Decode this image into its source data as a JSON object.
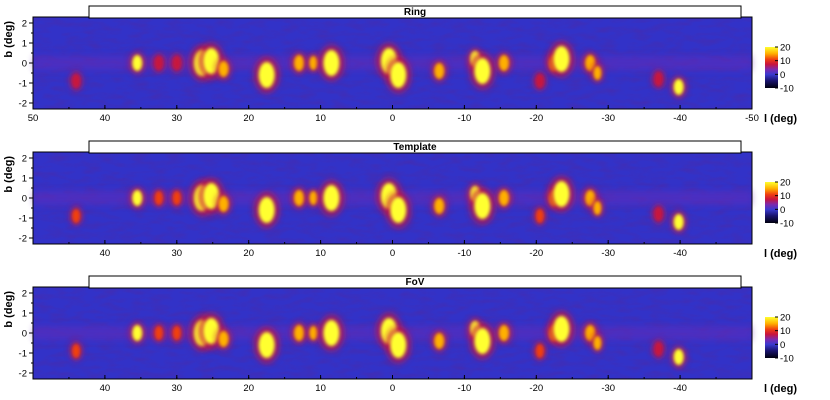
{
  "chart_data": [
    {
      "type": "heatmap",
      "title": "Ring",
      "xlabel": "l (deg)",
      "ylabel": "b (deg)",
      "xlim": [
        50,
        -50
      ],
      "ylim": [
        -2.3,
        2.3
      ],
      "x_tick_labels": [
        "50",
        "40",
        "30",
        "20",
        "10",
        "0",
        "-10",
        "-20",
        "-30",
        "-40",
        "-50"
      ],
      "y_tick_labels": [
        "-2",
        "-1",
        "0",
        "1",
        "2"
      ],
      "colorbar": {
        "range": [
          -10,
          20
        ],
        "tick_labels": [
          "-10",
          "0",
          "10",
          "20"
        ]
      },
      "hotspots": [
        {
          "l": 44,
          "b": -0.9,
          "value": 9
        },
        {
          "l": 35.5,
          "b": 0.0,
          "value": 18
        },
        {
          "l": 32.5,
          "b": 0.0,
          "value": 9
        },
        {
          "l": 30,
          "b": 0.0,
          "value": 9
        },
        {
          "l": 26.5,
          "b": 0.0,
          "value": 20
        },
        {
          "l": 25.2,
          "b": 0.1,
          "value": 20
        },
        {
          "l": 23.5,
          "b": -0.3,
          "value": 17
        },
        {
          "l": 17.5,
          "b": -0.6,
          "value": 20
        },
        {
          "l": 13,
          "b": 0.0,
          "value": 17
        },
        {
          "l": 11,
          "b": 0.0,
          "value": 14
        },
        {
          "l": 8.5,
          "b": 0.0,
          "value": 20
        },
        {
          "l": 0.5,
          "b": 0.1,
          "value": 20
        },
        {
          "l": -0.8,
          "b": -0.6,
          "value": 20
        },
        {
          "l": -6.5,
          "b": -0.4,
          "value": 16
        },
        {
          "l": -11.5,
          "b": 0.2,
          "value": 18
        },
        {
          "l": -12.5,
          "b": -0.4,
          "value": 20
        },
        {
          "l": -15.5,
          "b": 0.0,
          "value": 16
        },
        {
          "l": -20.5,
          "b": -0.9,
          "value": 9
        },
        {
          "l": -22.5,
          "b": 0.0,
          "value": 15
        },
        {
          "l": -23.5,
          "b": 0.2,
          "value": 20
        },
        {
          "l": -27.5,
          "b": 0.0,
          "value": 16
        },
        {
          "l": -28.5,
          "b": -0.5,
          "value": 14
        },
        {
          "l": -37,
          "b": -0.8,
          "value": 9
        },
        {
          "l": -39.8,
          "b": -1.2,
          "value": 18
        }
      ]
    },
    {
      "type": "heatmap",
      "title": "Template",
      "xlabel": "l (deg)",
      "ylabel": "b (deg)",
      "xlim": [
        50,
        -50
      ],
      "ylim": [
        -2.3,
        2.3
      ],
      "x_tick_labels": [
        "40",
        "30",
        "20",
        "10",
        "0",
        "-10",
        "-20",
        "-30",
        "-40"
      ],
      "y_tick_labels": [
        "-2",
        "-1",
        "0",
        "1",
        "2"
      ],
      "colorbar": {
        "range": [
          -10,
          20
        ],
        "tick_labels": [
          "-10",
          "0",
          "10",
          "20"
        ]
      },
      "hotspots": [
        {
          "l": 44,
          "b": -0.9,
          "value": 10
        },
        {
          "l": 35.5,
          "b": 0.0,
          "value": 18
        },
        {
          "l": 32.5,
          "b": 0.0,
          "value": 10
        },
        {
          "l": 30,
          "b": 0.0,
          "value": 10
        },
        {
          "l": 26.5,
          "b": 0.0,
          "value": 20
        },
        {
          "l": 25.2,
          "b": 0.1,
          "value": 20
        },
        {
          "l": 23.5,
          "b": -0.3,
          "value": 17
        },
        {
          "l": 17.5,
          "b": -0.6,
          "value": 20
        },
        {
          "l": 13,
          "b": 0.0,
          "value": 17
        },
        {
          "l": 11,
          "b": 0.0,
          "value": 14
        },
        {
          "l": 8.5,
          "b": 0.0,
          "value": 20
        },
        {
          "l": 0.5,
          "b": 0.1,
          "value": 20
        },
        {
          "l": -0.8,
          "b": -0.6,
          "value": 20
        },
        {
          "l": -6.5,
          "b": -0.4,
          "value": 16
        },
        {
          "l": -11.5,
          "b": 0.2,
          "value": 18
        },
        {
          "l": -12.5,
          "b": -0.4,
          "value": 20
        },
        {
          "l": -15.5,
          "b": 0.0,
          "value": 16
        },
        {
          "l": -20.5,
          "b": -0.9,
          "value": 10
        },
        {
          "l": -22.5,
          "b": 0.0,
          "value": 15
        },
        {
          "l": -23.5,
          "b": 0.2,
          "value": 20
        },
        {
          "l": -27.5,
          "b": 0.0,
          "value": 16
        },
        {
          "l": -28.5,
          "b": -0.5,
          "value": 14
        },
        {
          "l": -37,
          "b": -0.8,
          "value": 9
        },
        {
          "l": -39.8,
          "b": -1.2,
          "value": 18
        }
      ]
    },
    {
      "type": "heatmap",
      "title": "FoV",
      "xlabel": "l (deg)",
      "ylabel": "b (deg)",
      "xlim": [
        50,
        -50
      ],
      "ylim": [
        -2.3,
        2.3
      ],
      "x_tick_labels": [
        "40",
        "30",
        "20",
        "10",
        "0",
        "-10",
        "-20",
        "-30",
        "-40"
      ],
      "y_tick_labels": [
        "-2",
        "-1",
        "0",
        "1",
        "2"
      ],
      "colorbar": {
        "range": [
          -10,
          20
        ],
        "tick_labels": [
          "-10",
          "0",
          "10",
          "20"
        ]
      },
      "hotspots": [
        {
          "l": 44,
          "b": -0.9,
          "value": 10
        },
        {
          "l": 35.5,
          "b": 0.0,
          "value": 18
        },
        {
          "l": 32.5,
          "b": 0.0,
          "value": 11
        },
        {
          "l": 30,
          "b": 0.0,
          "value": 11
        },
        {
          "l": 26.5,
          "b": 0.0,
          "value": 20
        },
        {
          "l": 25.2,
          "b": 0.1,
          "value": 20
        },
        {
          "l": 23.5,
          "b": -0.3,
          "value": 17
        },
        {
          "l": 17.5,
          "b": -0.6,
          "value": 20
        },
        {
          "l": 13,
          "b": 0.0,
          "value": 17
        },
        {
          "l": 11,
          "b": 0.0,
          "value": 14
        },
        {
          "l": 8.5,
          "b": 0.0,
          "value": 20
        },
        {
          "l": 0.5,
          "b": 0.1,
          "value": 20
        },
        {
          "l": -0.8,
          "b": -0.6,
          "value": 20
        },
        {
          "l": -6.5,
          "b": -0.4,
          "value": 16
        },
        {
          "l": -11.5,
          "b": 0.2,
          "value": 18
        },
        {
          "l": -12.5,
          "b": -0.4,
          "value": 20
        },
        {
          "l": -15.5,
          "b": 0.0,
          "value": 16
        },
        {
          "l": -20.5,
          "b": -0.9,
          "value": 11
        },
        {
          "l": -22.5,
          "b": 0.0,
          "value": 15
        },
        {
          "l": -23.5,
          "b": 0.2,
          "value": 20
        },
        {
          "l": -27.5,
          "b": 0.0,
          "value": 16
        },
        {
          "l": -28.5,
          "b": -0.5,
          "value": 14
        },
        {
          "l": -37,
          "b": -0.8,
          "value": 9
        },
        {
          "l": -39.8,
          "b": -1.2,
          "value": 18
        }
      ]
    }
  ],
  "colors": {
    "background_map": "#3232c8",
    "colormap": [
      "#000010",
      "#1a1470",
      "#3a3ad0",
      "#7a2ab0",
      "#c8143c",
      "#f04010",
      "#ffb000",
      "#ffff30"
    ]
  }
}
